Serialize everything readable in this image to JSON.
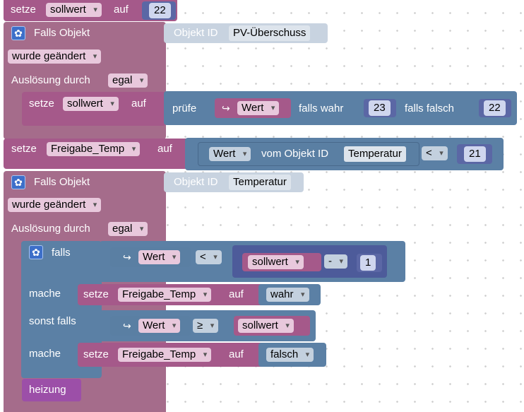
{
  "labels": {
    "setze": "setze",
    "auf": "auf",
    "falls_objekt": "Falls Objekt",
    "objekt_id": "Objekt ID",
    "ausloesung_durch": "Auslösung durch",
    "pruefe": "prüfe",
    "falls_wahr": "falls wahr",
    "falls_falsch": "falls falsch",
    "vom_objekt_id": "vom Objekt ID",
    "falls": "falls",
    "mache": "mache",
    "sonst_falls": "sonst falls",
    "heizung": "heizung",
    "arrow": "↪"
  },
  "block1": {
    "variable": "sollwert",
    "value": "22"
  },
  "trigger1": {
    "object_id": "PV-Überschuss",
    "condition": "wurde geändert",
    "trigger_by": "egal",
    "set_variable": "sollwert",
    "check_field": "Wert",
    "if_true": "23",
    "if_false": "22"
  },
  "block2": {
    "variable": "Freigabe_Temp",
    "field": "Wert",
    "object_id": "Temperatur",
    "operator": "<",
    "value": "21"
  },
  "trigger2": {
    "object_id": "Temperatur",
    "condition": "wurde geändert",
    "trigger_by": "egal",
    "if1": {
      "field": "Wert",
      "operator": "<",
      "variable": "sollwert",
      "math_op": "-",
      "number": "1",
      "set_variable": "Freigabe_Temp",
      "set_value": "wahr"
    },
    "if2": {
      "field": "Wert",
      "operator": "≥",
      "variable": "sollwert",
      "set_variable": "Freigabe_Temp",
      "set_value": "falsch"
    }
  },
  "icons": {
    "gear": "gear-icon",
    "dropdown": "chevron-down-icon",
    "arrow": "return-arrow-icon"
  },
  "colors": {
    "variables": "#a5598a",
    "event": "#a56c8b",
    "logic": "#5b80a5",
    "math": "#5b67a5",
    "procedure": "#9c4fa8"
  }
}
